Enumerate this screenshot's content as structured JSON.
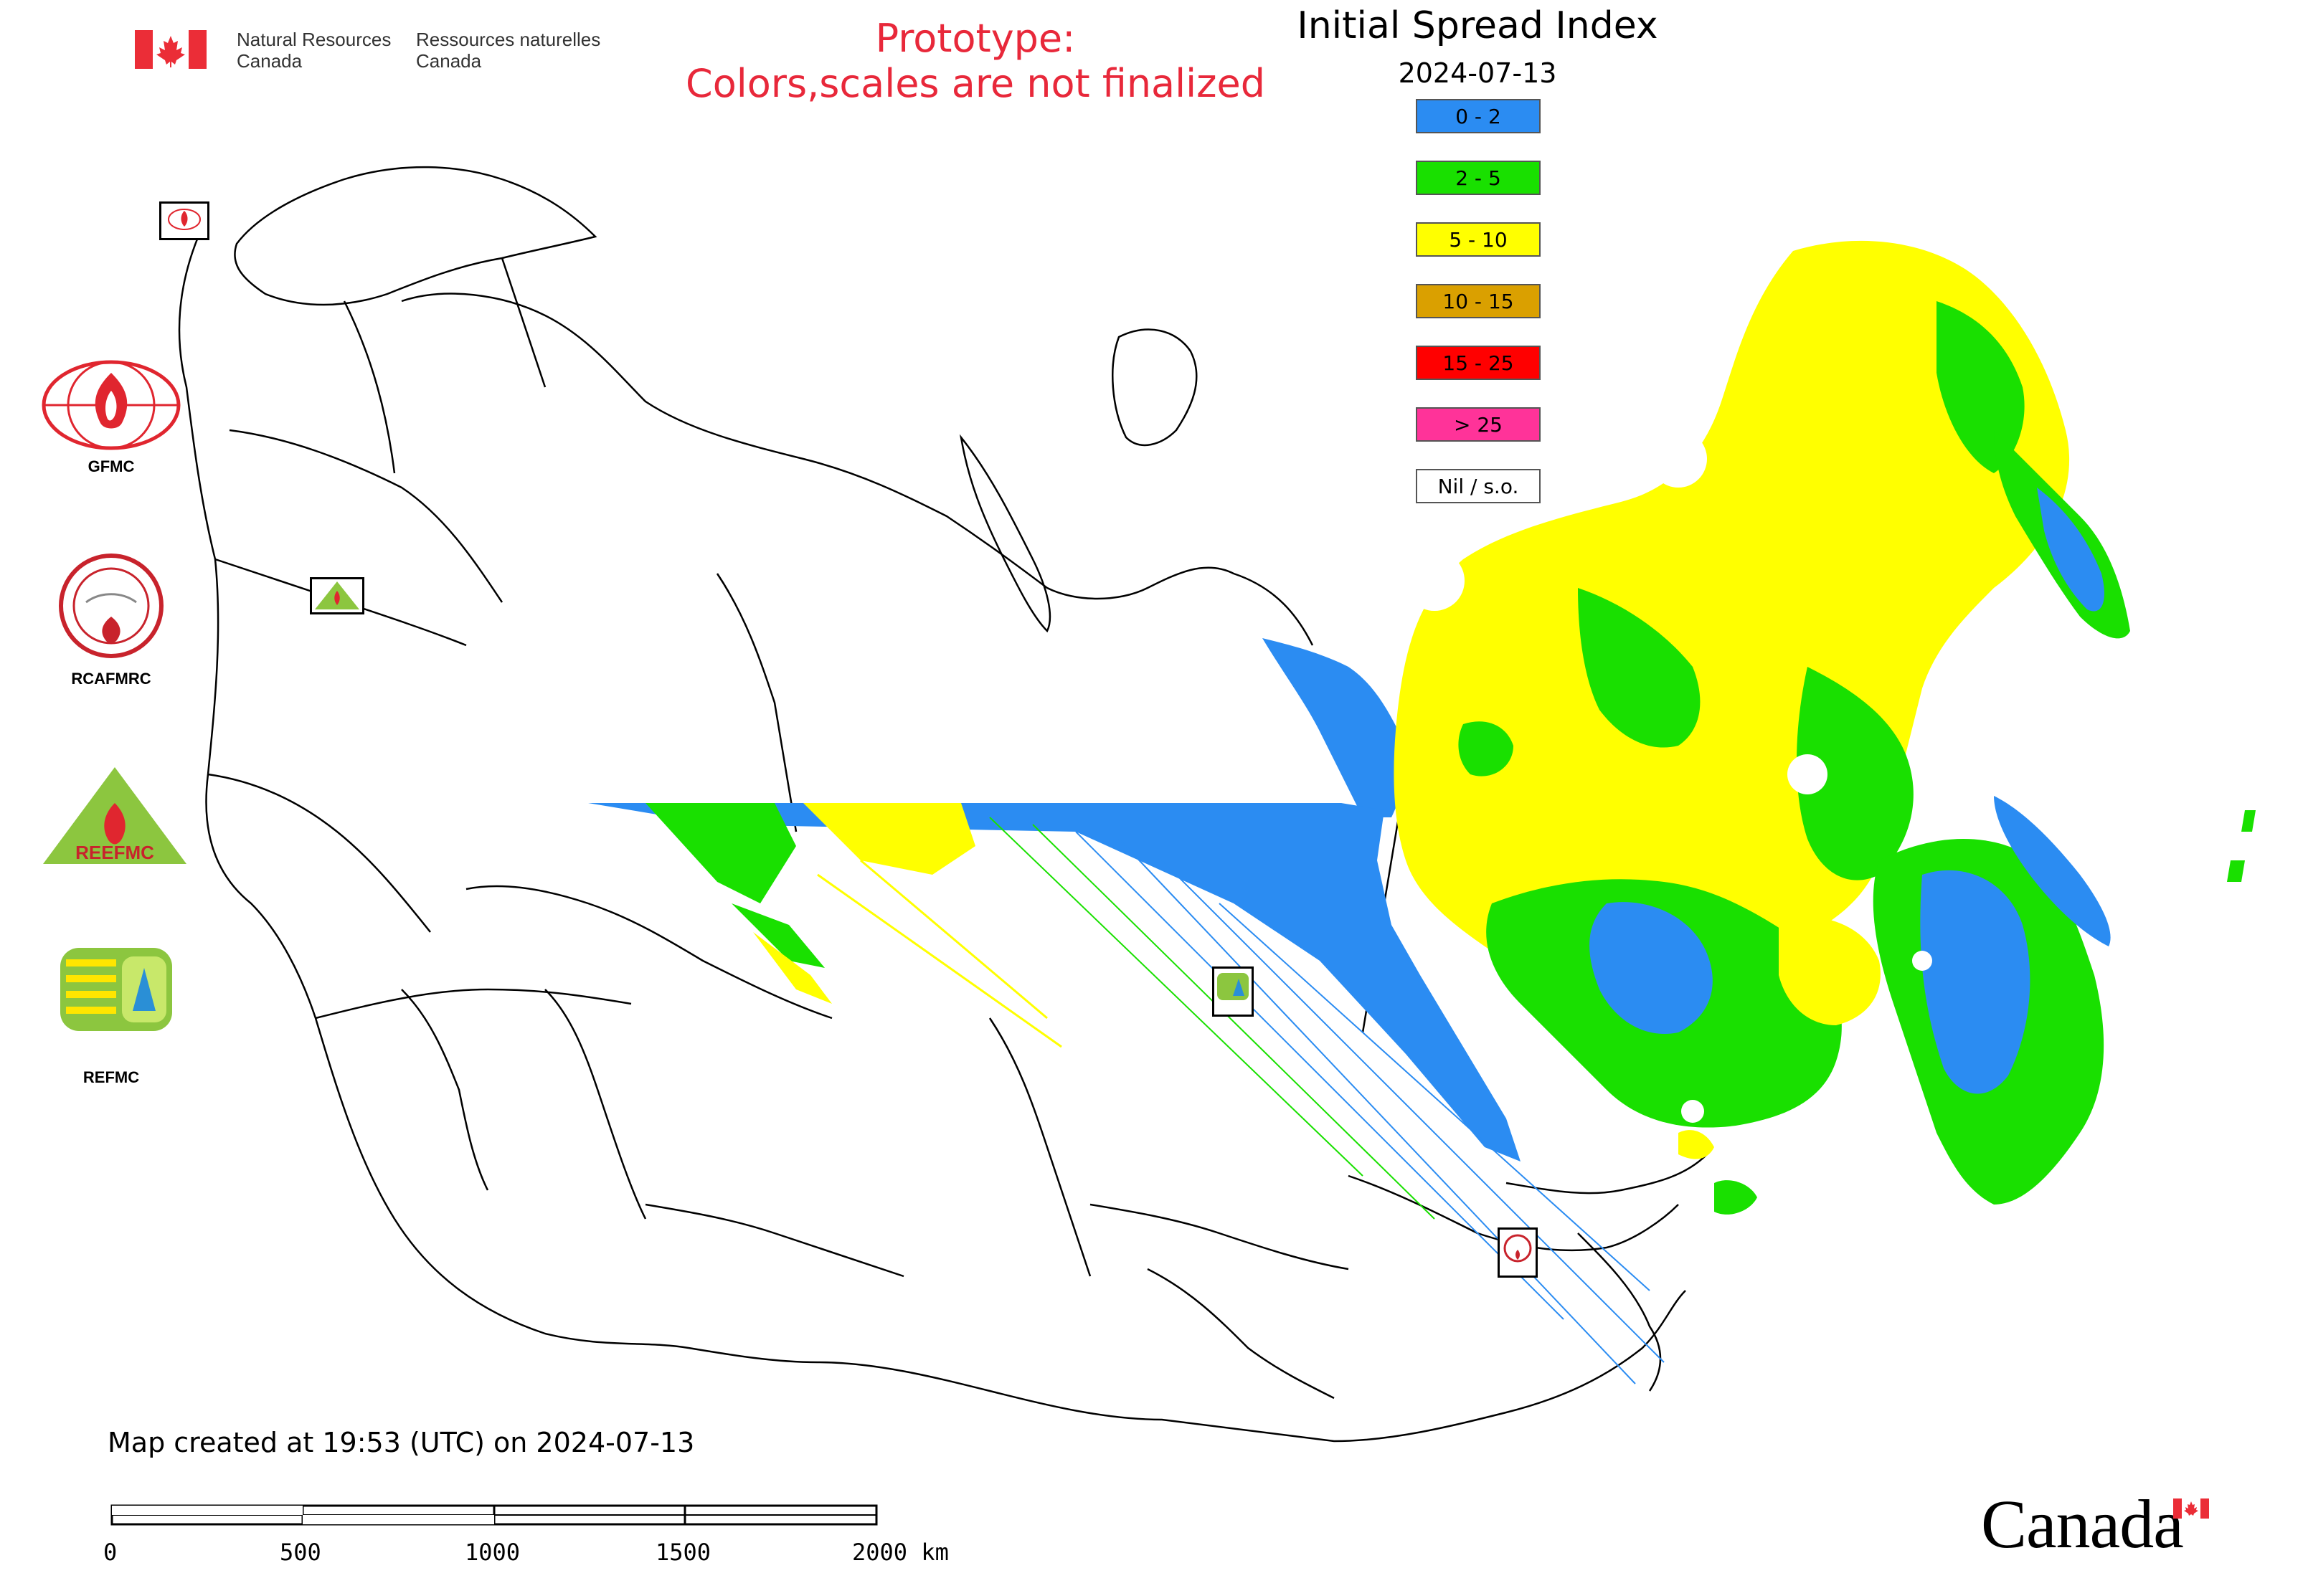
{
  "header": {
    "nrcan_en_line1": "Natural Resources",
    "nrcan_en_line2": "Canada",
    "nrcan_fr_line1": "Ressources naturelles",
    "nrcan_fr_line2": "Canada",
    "prototype_line1": "Prototype:",
    "prototype_line2": "Colors,scales are not finalized",
    "title": "Initial Spread Index",
    "date": "2024-07-13"
  },
  "legend": {
    "items": [
      {
        "label": "0 - 2",
        "color": "#2b8cf2"
      },
      {
        "label": "2 - 5",
        "color": "#19e000"
      },
      {
        "label": "5 - 10",
        "color": "#ffff00"
      },
      {
        "label": "10 - 15",
        "color": "#daa000"
      },
      {
        "label": "15 - 25",
        "color": "#ff0000"
      },
      {
        "label": "> 25",
        "color": "#ff3399"
      },
      {
        "label": "Nil / s.o.",
        "color": "#ffffff"
      }
    ]
  },
  "logos": {
    "gfmc": "GFMC",
    "rcafmrc": "RCAFMRC",
    "reefmc": "REEFMC",
    "refmc": "REFMC"
  },
  "footer": {
    "created": "Map created at 19:53 (UTC) on 2024-07-13",
    "scale_labels": [
      "0",
      "500",
      "1000",
      "1500",
      "2000 km"
    ],
    "wordmark": "Canada"
  },
  "colors": {
    "accent_red": "#e8283a",
    "flag_red": "#eb2d37"
  }
}
